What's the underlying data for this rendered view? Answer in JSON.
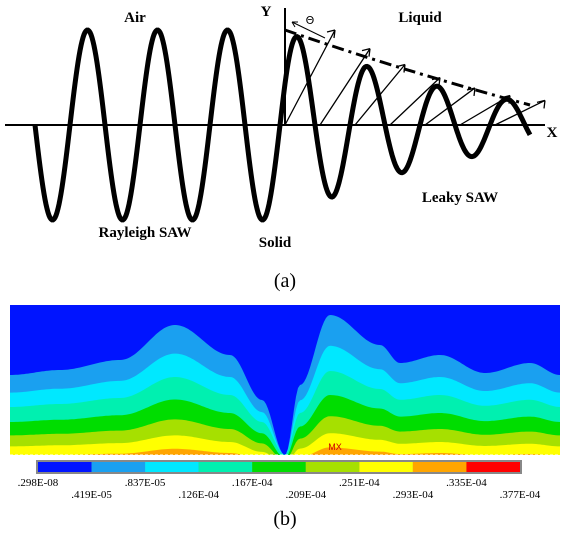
{
  "panel_a": {
    "labels": {
      "air": "Air",
      "liquid": "Liquid",
      "y_axis": "Y",
      "x_axis": "X",
      "angle": "Θ",
      "rayleigh": "Rayleigh SAW",
      "solid": "Solid",
      "leaky": "Leaky SAW"
    },
    "caption": "(a)"
  },
  "panel_b": {
    "max_marker": "MX",
    "caption": "(b)",
    "colorbar": [
      {
        "label": ".298E-08",
        "color": "#0014ff"
      },
      {
        "label": ".419E-05",
        "color": "#1aa0f0"
      },
      {
        "label": ".837E-05",
        "color": "#00e8ff"
      },
      {
        "label": ".126E-04",
        "color": "#00f0b0"
      },
      {
        "label": ".167E-04",
        "color": "#00dd00"
      },
      {
        "label": ".209E-04",
        "color": "#a6e000"
      },
      {
        "label": ".251E-04",
        "color": "#ffff00"
      },
      {
        "label": ".293E-04",
        "color": "#ffa500"
      },
      {
        "label": ".335E-04",
        "color": "#ff0000"
      },
      {
        "label": ".377E-04"
      }
    ]
  }
}
